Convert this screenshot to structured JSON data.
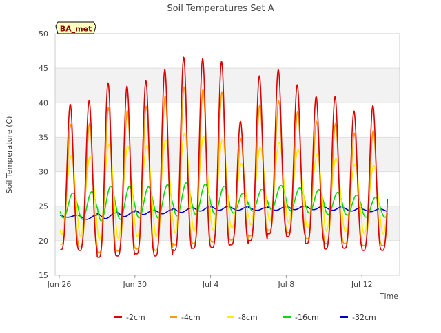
{
  "chart_data": {
    "type": "line",
    "title": "Soil Temperatures Set A",
    "xlabel": "Time",
    "ylabel": "Soil Temperature (C)",
    "annotation": "BA_met",
    "x_start": "Jun 26",
    "x_end": "Jul 14",
    "x_ticks": [
      "Jun 26",
      "Jun 30",
      "Jul 4",
      "Jul 8",
      "Jul 12"
    ],
    "ylim": [
      15,
      50
    ],
    "y_ticks": [
      15,
      20,
      25,
      30,
      35,
      40,
      45,
      50
    ],
    "grid": "horizontal bands",
    "legend_position": "bottom",
    "series": [
      {
        "name": "-2cm",
        "color": "#dd0000",
        "daily_max": [
          39.8,
          40.3,
          42.9,
          42.4,
          43.2,
          44.8,
          46.6,
          46.4,
          46.0,
          37.3,
          43.9,
          44.8,
          42.6,
          40.9,
          40.9,
          38.8,
          39.6
        ],
        "daily_min": [
          18.7,
          18.6,
          17.6,
          17.8,
          18.1,
          17.8,
          18.6,
          18.9,
          19.0,
          19.4,
          20.0,
          21.0,
          20.6,
          19.6,
          18.8,
          18.9,
          18.6
        ]
      },
      {
        "name": "-4cm",
        "color": "#ff9900",
        "daily_max": [
          36.9,
          37.0,
          39.3,
          38.9,
          39.5,
          41.0,
          42.3,
          42.0,
          41.6,
          34.8,
          39.7,
          40.3,
          38.7,
          37.3,
          37.0,
          35.6,
          36.0
        ],
        "daily_min": [
          19.5,
          19.2,
          18.3,
          18.5,
          18.8,
          18.6,
          19.4,
          19.6,
          19.8,
          20.1,
          20.7,
          21.5,
          21.2,
          20.3,
          19.6,
          19.6,
          19.3
        ]
      },
      {
        "name": "-8cm",
        "color": "#ffee00",
        "daily_max": [
          32.3,
          32.2,
          34.0,
          33.7,
          33.8,
          34.6,
          35.6,
          35.1,
          34.7,
          31.2,
          33.5,
          34.2,
          33.2,
          32.5,
          31.9,
          31.1,
          30.9
        ],
        "daily_min": [
          20.9,
          20.6,
          20.2,
          20.3,
          20.6,
          20.6,
          21.1,
          21.4,
          21.5,
          21.8,
          22.3,
          22.9,
          22.6,
          21.9,
          21.4,
          21.3,
          21.0
        ]
      },
      {
        "name": "-16cm",
        "color": "#00dd00",
        "daily_max": [
          26.9,
          27.1,
          27.9,
          27.9,
          27.8,
          28.1,
          28.4,
          28.2,
          27.9,
          26.9,
          27.5,
          28.0,
          27.7,
          27.4,
          27.0,
          26.6,
          26.3
        ],
        "daily_min": [
          23.3,
          23.1,
          22.9,
          23.1,
          23.3,
          23.3,
          23.6,
          23.8,
          23.9,
          24.0,
          24.3,
          24.5,
          24.4,
          24.0,
          23.8,
          23.7,
          23.4
        ]
      },
      {
        "name": "-32cm",
        "color": "#0000cc",
        "daily_max": [
          23.7,
          23.7,
          24.0,
          24.2,
          24.4,
          24.5,
          24.7,
          24.9,
          25.0,
          24.9,
          24.8,
          24.9,
          25.0,
          25.0,
          24.9,
          24.8,
          24.6
        ],
        "daily_min": [
          23.4,
          23.1,
          23.2,
          23.5,
          23.8,
          23.9,
          24.1,
          24.3,
          24.4,
          24.4,
          24.4,
          24.4,
          24.5,
          24.5,
          24.4,
          24.3,
          24.2
        ]
      }
    ]
  }
}
